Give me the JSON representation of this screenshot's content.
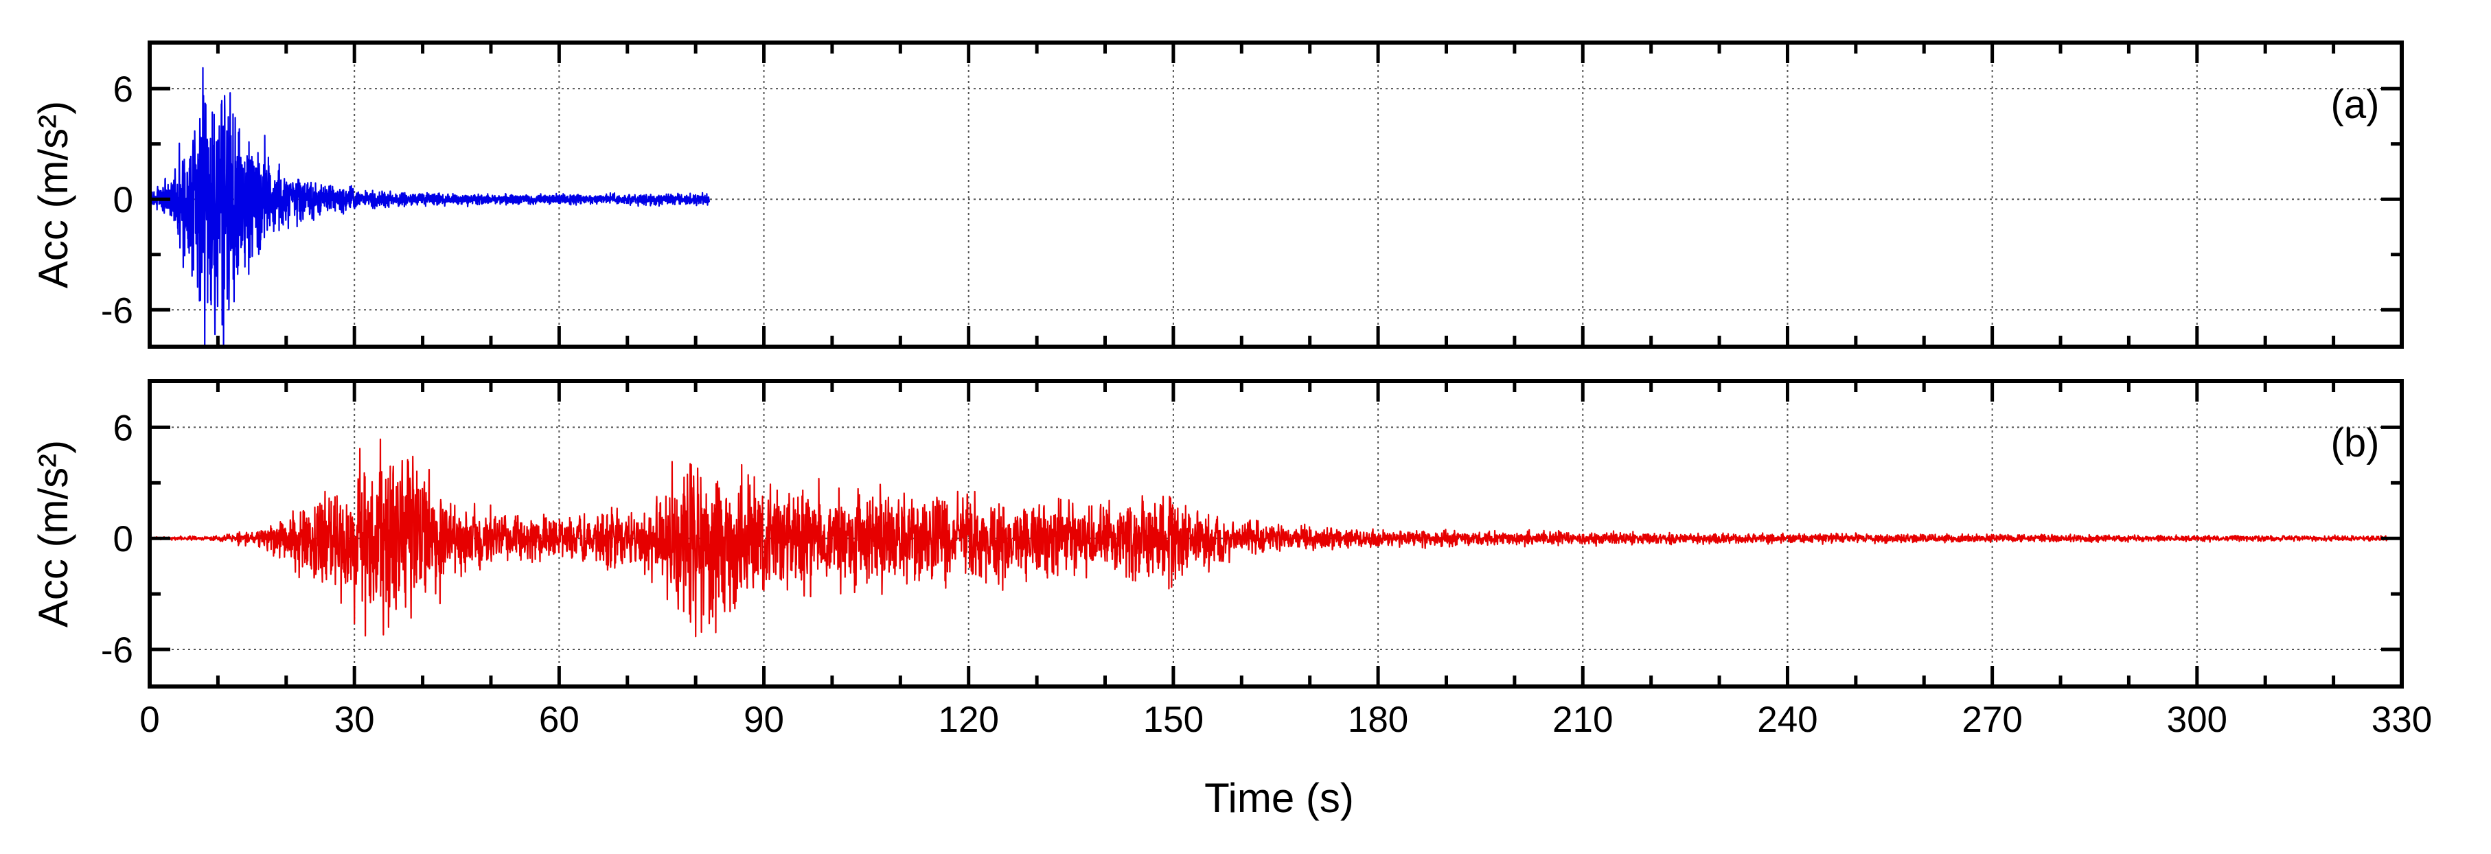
{
  "chart_data": [
    {
      "type": "line",
      "panel_label": "(a)",
      "ylabel": "Acc  (m/s²)",
      "xlim": [
        0,
        330
      ],
      "ylim": [
        -8,
        8.5
      ],
      "yticks": [
        6,
        0,
        -6
      ],
      "ytick_labels": [
        "6",
        "0",
        "-6"
      ],
      "grid": true,
      "color": "#0000e6",
      "duration": 82,
      "envelope": [
        [
          0,
          0.3
        ],
        [
          3,
          0.9
        ],
        [
          5,
          2.5
        ],
        [
          8,
          5.0
        ],
        [
          10,
          5.6
        ],
        [
          12,
          4.0
        ],
        [
          15,
          2.5
        ],
        [
          18,
          1.7
        ],
        [
          20,
          1.2
        ],
        [
          25,
          0.6
        ],
        [
          30,
          0.4
        ],
        [
          40,
          0.25
        ],
        [
          50,
          0.2
        ],
        [
          60,
          0.2
        ],
        [
          70,
          0.2
        ],
        [
          82,
          0.25
        ]
      ],
      "peaks": [
        [
          11,
          4.8
        ],
        [
          13,
          3.6
        ],
        [
          10,
          3.2
        ],
        [
          19,
          1.9
        ],
        [
          8.5,
          -5.6
        ],
        [
          11.5,
          -4.3
        ],
        [
          13,
          -3.6
        ]
      ]
    },
    {
      "type": "line",
      "panel_label": "(b)",
      "ylabel": "Acc  (m/s²)",
      "xlabel": "Time  (s)",
      "xlim": [
        0,
        330
      ],
      "ylim": [
        -8,
        8.5
      ],
      "xticks": [
        0,
        30,
        60,
        90,
        120,
        150,
        180,
        210,
        240,
        270,
        300,
        330
      ],
      "xtick_labels": [
        "0",
        "30",
        "60",
        "90",
        "120",
        "150",
        "180",
        "210",
        "240",
        "270",
        "300",
        "330"
      ],
      "yticks": [
        6,
        0,
        -6
      ],
      "ytick_labels": [
        "6",
        "0",
        "-6"
      ],
      "grid": true,
      "color": "#e60000",
      "duration": 328,
      "envelope": [
        [
          0,
          0.05
        ],
        [
          10,
          0.1
        ],
        [
          15,
          0.3
        ],
        [
          20,
          0.9
        ],
        [
          25,
          1.7
        ],
        [
          30,
          2.8
        ],
        [
          35,
          3.4
        ],
        [
          40,
          2.8
        ],
        [
          45,
          1.5
        ],
        [
          50,
          1.1
        ],
        [
          60,
          0.9
        ],
        [
          70,
          1.2
        ],
        [
          75,
          2.0
        ],
        [
          80,
          4.0
        ],
        [
          85,
          2.8
        ],
        [
          90,
          2.2
        ],
        [
          100,
          2.0
        ],
        [
          110,
          1.8
        ],
        [
          120,
          1.8
        ],
        [
          130,
          1.6
        ],
        [
          140,
          1.3
        ],
        [
          150,
          1.8
        ],
        [
          155,
          1.2
        ],
        [
          160,
          0.7
        ],
        [
          170,
          0.5
        ],
        [
          180,
          0.35
        ],
        [
          190,
          0.3
        ],
        [
          210,
          0.25
        ],
        [
          240,
          0.2
        ],
        [
          270,
          0.15
        ],
        [
          300,
          0.12
        ],
        [
          328,
          0.1
        ]
      ],
      "peaks": [
        [
          37,
          4.2
        ],
        [
          34,
          3.6
        ],
        [
          80,
          5.3
        ],
        [
          82,
          4.4
        ],
        [
          125,
          2.4
        ],
        [
          150,
          2.0
        ],
        [
          35,
          -4.8
        ],
        [
          30,
          -4.6
        ],
        [
          80,
          -5.3
        ],
        [
          82,
          -4.6
        ],
        [
          90,
          -2.8
        ],
        [
          125,
          -2.8
        ],
        [
          150,
          -1.8
        ]
      ]
    }
  ]
}
